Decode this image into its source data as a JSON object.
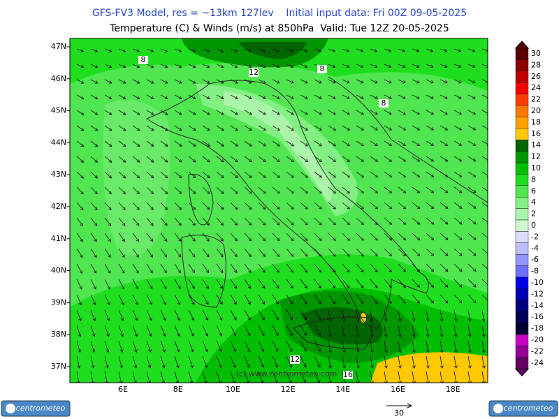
{
  "header": {
    "title": "GFS-FV3 Model, res = ~13km 127lev    Initial input data: Fri 00Z 09-05-2025",
    "subtitle": "Temperature (C) & Winds (m/s) at 850hPa  Valid: Tue 12Z 20-05-2025"
  },
  "latitude_labels": [
    "47N",
    "46N",
    "45N",
    "44N",
    "43N",
    "42N",
    "41N",
    "40N",
    "39N",
    "38N",
    "37N"
  ],
  "longitude_labels": [
    "6E",
    "8E",
    "10E",
    "12E",
    "14E",
    "16E",
    "18E"
  ],
  "colorbar": [
    {
      "value": 30,
      "color": "#5a0000"
    },
    {
      "value": 28,
      "color": "#8c0000"
    },
    {
      "value": 26,
      "color": "#be0000"
    },
    {
      "value": 24,
      "color": "#f00000"
    },
    {
      "value": 22,
      "color": "#ff3c00"
    },
    {
      "value": 20,
      "color": "#ff7800"
    },
    {
      "value": 18,
      "color": "#ffa000"
    },
    {
      "value": 16,
      "color": "#ffc800"
    },
    {
      "value": 14,
      "color": "#006400"
    },
    {
      "value": 12,
      "color": "#009600"
    },
    {
      "value": 10,
      "color": "#00be00"
    },
    {
      "value": 8,
      "color": "#1ede1e"
    },
    {
      "value": 6,
      "color": "#50e650"
    },
    {
      "value": 4,
      "color": "#82f082"
    },
    {
      "value": 2,
      "color": "#aaf5aa"
    },
    {
      "value": 0,
      "color": "#d2fad2"
    },
    {
      "value": -2,
      "color": "#dcdcff"
    },
    {
      "value": -4,
      "color": "#bebeff"
    },
    {
      "value": -6,
      "color": "#9696ff"
    },
    {
      "value": -8,
      "color": "#6e6eff"
    },
    {
      "value": -10,
      "color": "#0000e6"
    },
    {
      "value": -12,
      "color": "#0000b4"
    },
    {
      "value": -14,
      "color": "#000082"
    },
    {
      "value": -16,
      "color": "#00005a"
    },
    {
      "value": -18,
      "color": "#000032"
    },
    {
      "value": -20,
      "color": "#c800c8"
    },
    {
      "value": -22,
      "color": "#960096"
    },
    {
      "value": -24,
      "color": "#640064"
    }
  ],
  "contour_labels": [
    8,
    12,
    8,
    8,
    12,
    16
  ],
  "copyright": "(c) www.centrometeo.com",
  "wind_reference": "30",
  "logo_text": "centrometeo"
}
